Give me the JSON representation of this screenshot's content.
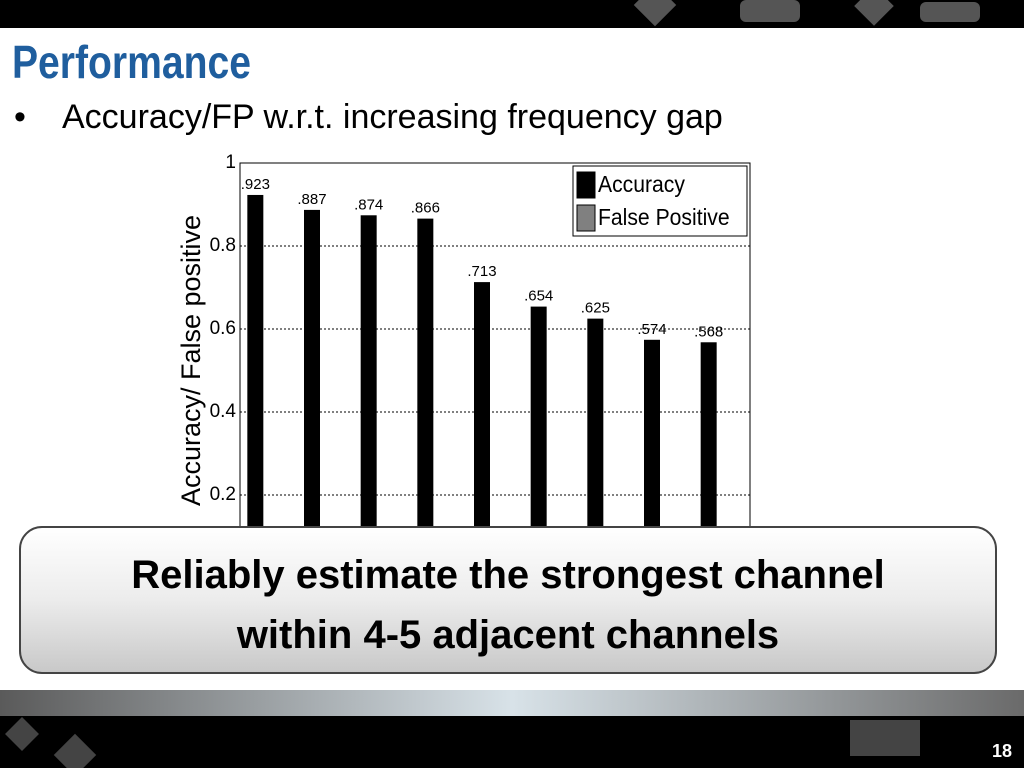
{
  "slide": {
    "title": "Performance",
    "bullet": "Accuracy/FP w.r.t. increasing frequency gap",
    "callout": [
      "Reliably estimate the strongest channel",
      "within 4-5 adjacent channels"
    ],
    "page_number": "18"
  },
  "chart_data": {
    "type": "bar",
    "y_label": "Accuracy/ False positive",
    "categories": [
      null,
      null,
      null,
      null,
      null,
      null,
      null,
      null,
      null
    ],
    "series": [
      {
        "name": "Accuracy",
        "color": "#000000",
        "values": [
          0.923,
          0.887,
          0.874,
          0.866,
          0.713,
          0.654,
          0.625,
          0.574,
          0.568
        ],
        "value_labels": [
          ".923",
          ".887",
          ".874",
          ".866",
          ".713",
          ".654",
          ".625",
          ".574",
          ".568"
        ]
      },
      {
        "name": "False Positive",
        "color": "#808080",
        "values": [
          null,
          null,
          null,
          null,
          null,
          null,
          null,
          null,
          null
        ]
      }
    ],
    "ylim": [
      0,
      1
    ],
    "yticks": [
      0.2,
      0.4,
      0.6,
      0.8,
      1
    ],
    "grid": true,
    "legend": "upper right"
  }
}
